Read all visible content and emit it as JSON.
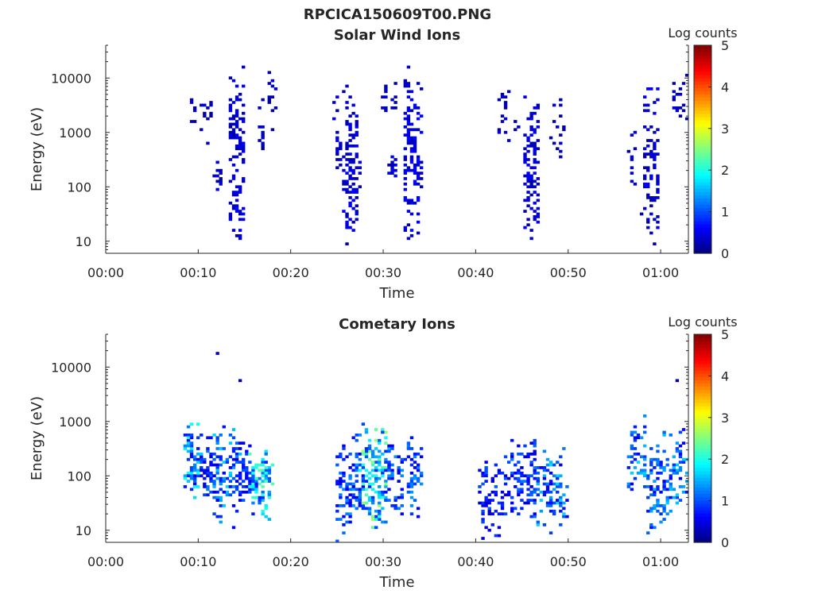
{
  "figure_title": "RPCICA150609T00.PNG",
  "chart_data": [
    {
      "type": "heatmap",
      "title": "Solar Wind Ions",
      "xlabel": "Time",
      "ylabel": "Energy (eV)",
      "y_scale": "log",
      "xlim_minutes": [
        0,
        63
      ],
      "ylim": [
        6,
        40000
      ],
      "x_ticks": [
        "00:00",
        "00:10",
        "00:20",
        "00:30",
        "00:40",
        "00:50",
        "01:00"
      ],
      "x_tick_minutes": [
        0,
        10,
        20,
        30,
        40,
        50,
        60
      ],
      "y_ticks": [
        "10",
        "100",
        "1000",
        "10000"
      ],
      "y_tick_values": [
        10,
        100,
        1000,
        10000
      ],
      "colorbar": {
        "label": "Log counts",
        "min": 0,
        "max": 5,
        "ticks": [
          "0",
          "1",
          "2",
          "3",
          "4",
          "5"
        ],
        "colormap": "jet"
      },
      "clusters": [
        {
          "t0": 9.2,
          "t1": 9.8,
          "e0": 800,
          "e1": 11000,
          "mean_log": 0.3,
          "n": 6
        },
        {
          "t0": 10.4,
          "t1": 11.6,
          "e0": 500,
          "e1": 9000,
          "mean_log": 0.3,
          "n": 14
        },
        {
          "t0": 11.8,
          "t1": 12.6,
          "e0": 60,
          "e1": 400,
          "mean_log": 0.4,
          "n": 14
        },
        {
          "t0": 13.4,
          "t1": 15.0,
          "e0": 20,
          "e1": 20000,
          "mean_log": 0.35,
          "n": 95
        },
        {
          "t0": 13.8,
          "t1": 14.8,
          "e0": 6,
          "e1": 60,
          "mean_log": 0.5,
          "n": 16
        },
        {
          "t0": 16.4,
          "t1": 17.2,
          "e0": 250,
          "e1": 6000,
          "mean_log": 0.3,
          "n": 12
        },
        {
          "t0": 17.6,
          "t1": 18.4,
          "e0": 800,
          "e1": 14000,
          "mean_log": 0.3,
          "n": 14
        },
        {
          "t0": 24.8,
          "t1": 25.6,
          "e0": 60,
          "e1": 9000,
          "mean_log": 0.35,
          "n": 20
        },
        {
          "t0": 25.8,
          "t1": 27.4,
          "e0": 6,
          "e1": 14000,
          "mean_log": 0.4,
          "n": 110
        },
        {
          "t0": 29.6,
          "t1": 31.4,
          "e0": 2000,
          "e1": 11000,
          "mean_log": 0.3,
          "n": 14
        },
        {
          "t0": 30.6,
          "t1": 31.6,
          "e0": 150,
          "e1": 500,
          "mean_log": 0.45,
          "n": 12
        },
        {
          "t0": 32.2,
          "t1": 34.2,
          "e0": 6,
          "e1": 30000,
          "mean_log": 0.45,
          "n": 125
        },
        {
          "t0": 42.4,
          "t1": 43.6,
          "e0": 400,
          "e1": 9000,
          "mean_log": 0.3,
          "n": 16
        },
        {
          "t0": 44.2,
          "t1": 44.6,
          "e0": 800,
          "e1": 3000,
          "mean_log": 0.3,
          "n": 4
        },
        {
          "t0": 45.2,
          "t1": 46.8,
          "e0": 6,
          "e1": 11000,
          "mean_log": 0.4,
          "n": 95
        },
        {
          "t0": 48.2,
          "t1": 49.8,
          "e0": 250,
          "e1": 9000,
          "mean_log": 0.3,
          "n": 16
        },
        {
          "t0": 56.6,
          "t1": 57.2,
          "e0": 60,
          "e1": 2000,
          "mean_log": 0.35,
          "n": 10
        },
        {
          "t0": 58.0,
          "t1": 59.8,
          "e0": 6,
          "e1": 14000,
          "mean_log": 0.4,
          "n": 85
        },
        {
          "t0": 61.0,
          "t1": 62.8,
          "e0": 800,
          "e1": 14000,
          "mean_log": 0.3,
          "n": 20
        }
      ]
    },
    {
      "type": "heatmap",
      "title": "Cometary Ions",
      "xlabel": "Time",
      "ylabel": "Energy (eV)",
      "y_scale": "log",
      "xlim_minutes": [
        0,
        63
      ],
      "ylim": [
        6,
        40000
      ],
      "x_ticks": [
        "00:00",
        "00:10",
        "00:20",
        "00:30",
        "00:40",
        "00:50",
        "01:00"
      ],
      "x_tick_minutes": [
        0,
        10,
        20,
        30,
        40,
        50,
        60
      ],
      "y_ticks": [
        "10",
        "100",
        "1000",
        "10000"
      ],
      "y_tick_values": [
        10,
        100,
        1000,
        10000
      ],
      "colorbar": {
        "label": "Log counts",
        "min": 0,
        "max": 5,
        "ticks": [
          "0",
          "1",
          "2",
          "3",
          "4",
          "5"
        ],
        "colormap": "jet"
      },
      "clusters": [
        {
          "t0": 8.6,
          "t1": 10.4,
          "e0": 30,
          "e1": 1600,
          "mean_log": 1.3,
          "n": 85
        },
        {
          "t0": 10.4,
          "t1": 12.0,
          "e0": 30,
          "e1": 700,
          "mean_log": 0.8,
          "n": 45
        },
        {
          "t0": 11.6,
          "t1": 14.4,
          "e0": 8,
          "e1": 900,
          "mean_log": 1.1,
          "n": 95
        },
        {
          "t0": 14.2,
          "t1": 15.8,
          "e0": 20,
          "e1": 500,
          "mean_log": 0.7,
          "n": 50
        },
        {
          "t0": 15.6,
          "t1": 18.0,
          "e0": 15,
          "e1": 400,
          "mean_log": 1.5,
          "n": 95
        },
        {
          "t0": 25.0,
          "t1": 27.8,
          "e0": 6,
          "e1": 1000,
          "mean_log": 0.9,
          "n": 110
        },
        {
          "t0": 27.6,
          "t1": 30.6,
          "e0": 8,
          "e1": 1000,
          "mean_log": 1.7,
          "n": 140
        },
        {
          "t0": 30.2,
          "t1": 34.2,
          "e0": 12,
          "e1": 700,
          "mean_log": 0.9,
          "n": 95
        },
        {
          "t0": 40.4,
          "t1": 43.6,
          "e0": 6,
          "e1": 300,
          "mean_log": 0.7,
          "n": 90
        },
        {
          "t0": 43.4,
          "t1": 46.6,
          "e0": 12,
          "e1": 900,
          "mean_log": 0.8,
          "n": 90
        },
        {
          "t0": 46.4,
          "t1": 49.8,
          "e0": 6,
          "e1": 450,
          "mean_log": 1.1,
          "n": 90
        },
        {
          "t0": 56.6,
          "t1": 58.6,
          "e0": 30,
          "e1": 1300,
          "mean_log": 1.1,
          "n": 55
        },
        {
          "t0": 58.4,
          "t1": 60.6,
          "e0": 6,
          "e1": 600,
          "mean_log": 1.0,
          "n": 70
        },
        {
          "t0": 60.4,
          "t1": 62.8,
          "e0": 15,
          "e1": 900,
          "mean_log": 1.1,
          "n": 70
        }
      ],
      "outliers": [
        {
          "t": 12.2,
          "e": 17000,
          "log": 0.4
        },
        {
          "t": 14.6,
          "e": 5800,
          "log": 0.3
        },
        {
          "t": 61.8,
          "e": 5500,
          "log": 0.3
        }
      ]
    }
  ]
}
